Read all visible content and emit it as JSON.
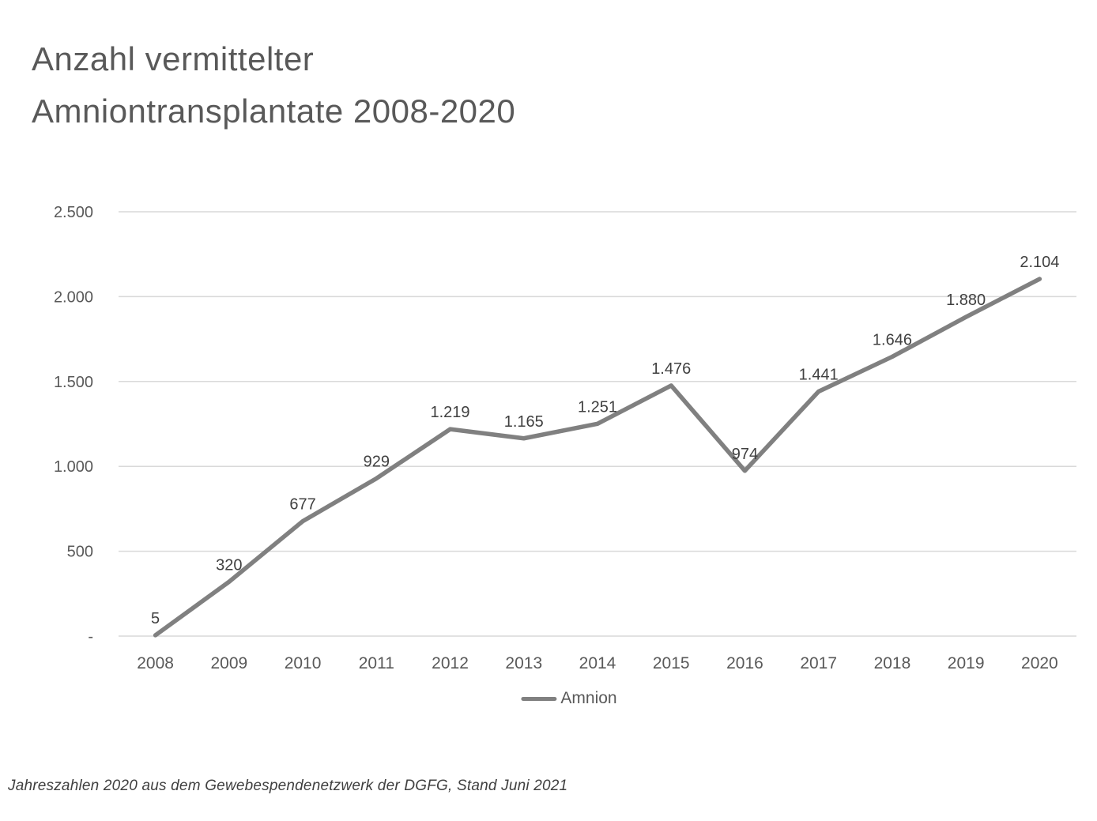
{
  "page": {
    "title_lines": [
      "Anzahl vermittelter",
      "Amniontransplantate 2008-2020"
    ],
    "footnote": "Jahreszahlen 2020 aus dem Gewebespendenetzwerk der DGFG, Stand Juni 2021"
  },
  "chart_data": {
    "type": "line",
    "title": "Anzahl vermittelter Amniontransplantate 2008-2020",
    "categories": [
      "2008",
      "2009",
      "2010",
      "2011",
      "2012",
      "2013",
      "2014",
      "2015",
      "2016",
      "2017",
      "2018",
      "2019",
      "2020"
    ],
    "series": [
      {
        "name": "Amnion",
        "values": [
          5,
          320,
          677,
          929,
          1219,
          1165,
          1251,
          1476,
          974,
          1441,
          1646,
          1880,
          2104
        ],
        "labels": [
          "5",
          "320",
          "677",
          "929",
          "1.219",
          "1.165",
          "1.251",
          "1.476",
          "974",
          "1.441",
          "1.646",
          "1.880",
          "2.104"
        ]
      }
    ],
    "xlabel": "",
    "ylabel": "",
    "ylim": [
      0,
      2500
    ],
    "y_ticks": [
      {
        "value": 0,
        "label": "-"
      },
      {
        "value": 500,
        "label": "500"
      },
      {
        "value": 1000,
        "label": "1.000"
      },
      {
        "value": 1500,
        "label": "1.500"
      },
      {
        "value": 2000,
        "label": "2.000"
      },
      {
        "value": 2500,
        "label": "2.500"
      }
    ],
    "grid": true,
    "legend_position": "bottom",
    "colors": {
      "line": "#808080",
      "gridline": "#d9d9d9",
      "data_label": "#404040",
      "tick_label": "#595959",
      "title": "#595959",
      "footnote": "#404040"
    }
  }
}
